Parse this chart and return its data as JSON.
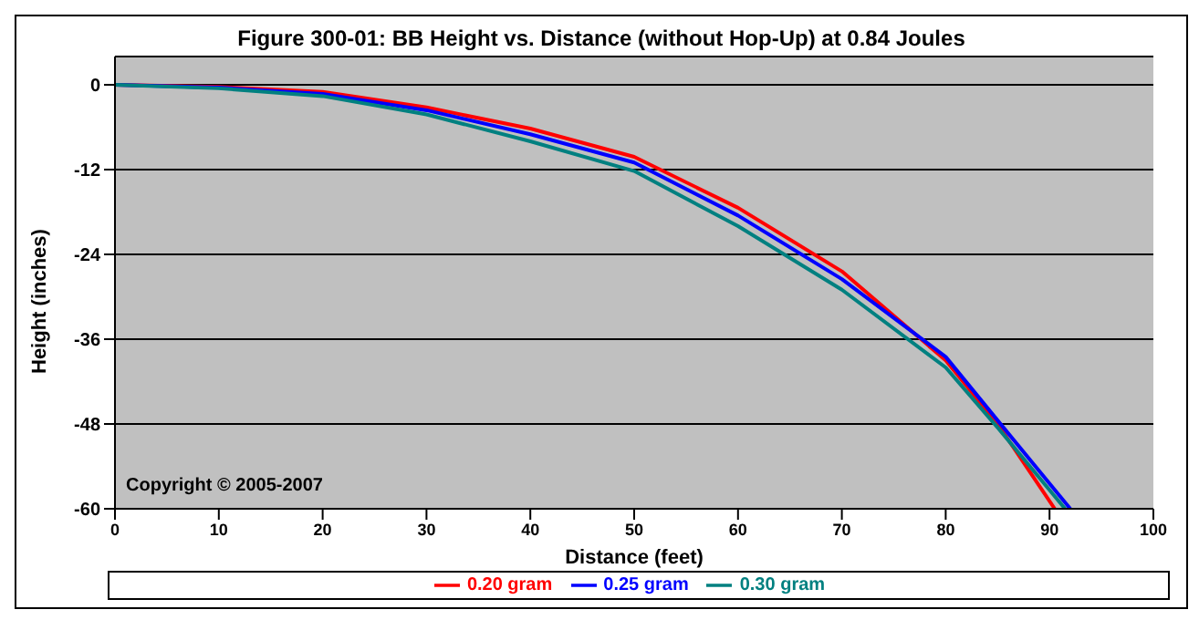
{
  "chart_data": {
    "type": "line",
    "title": "Figure 300-01:  BB Height vs. Distance (without Hop-Up) at 0.84 Joules",
    "xlabel": "Distance (feet)",
    "ylabel": "Height (inches)",
    "series": [
      {
        "name": "0.20 gram",
        "color": "#ff0000",
        "x": [
          0,
          10,
          20,
          30,
          40,
          50,
          60,
          70,
          80,
          85,
          90.5
        ],
        "values": [
          0,
          -0.3,
          -1,
          -3.2,
          -6.2,
          -10.2,
          -17.4,
          -26.4,
          -39,
          -48,
          -60
        ]
      },
      {
        "name": "0.25 gram",
        "color": "#0000ff",
        "x": [
          0,
          10,
          20,
          30,
          40,
          50,
          60,
          70,
          80,
          85,
          92
        ],
        "values": [
          0,
          -0.4,
          -1.3,
          -3.6,
          -7,
          -11,
          -18.5,
          -27.5,
          -38.5,
          -47.5,
          -60
        ]
      },
      {
        "name": "0.30 gram",
        "color": "#008080",
        "x": [
          0,
          10,
          20,
          30,
          40,
          50,
          60,
          70,
          80,
          85,
          91.5
        ],
        "values": [
          0,
          -0.5,
          -1.6,
          -4.2,
          -8,
          -12.2,
          -20,
          -29,
          -40,
          -48.5,
          -60
        ]
      }
    ],
    "xlim": [
      0,
      100
    ],
    "xticks": [
      0,
      10,
      20,
      30,
      40,
      50,
      60,
      70,
      80,
      90,
      100
    ],
    "ylim": [
      -60,
      4
    ],
    "yticks": [
      0,
      -12,
      -24,
      -36,
      -48,
      -60
    ],
    "grid": "y",
    "legend": "bottom",
    "marker": "none",
    "line_style": "solid",
    "annotations": [
      "Copyright © 2005-2007"
    ]
  }
}
